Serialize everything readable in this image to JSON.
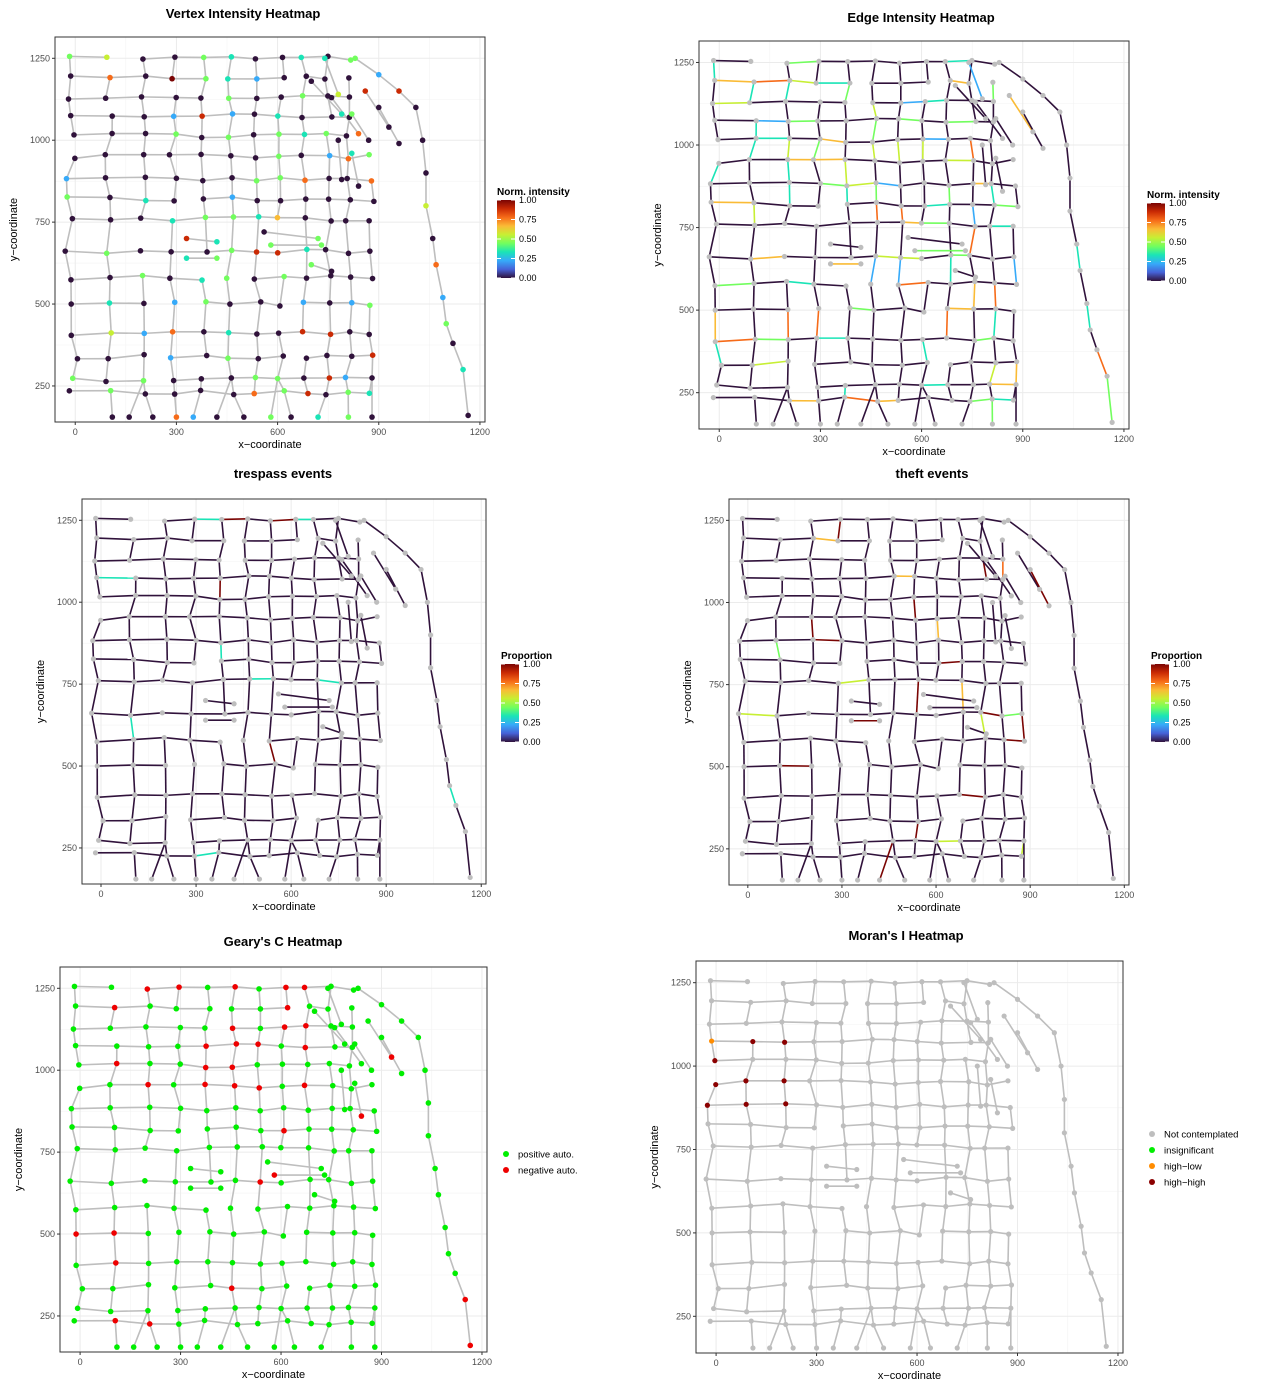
{
  "panels": [
    {
      "id": "p1",
      "title": "Vertex Intensity Heatmap",
      "xlabel": "x−coordinate",
      "ylabel": "y−coordinate",
      "x_ticks": [
        "0",
        "300",
        "600",
        "900",
        "1200"
      ],
      "y_ticks": [
        "250",
        "500",
        "750",
        "1000",
        "1250"
      ],
      "legend": {
        "title": "Norm. intensity",
        "type": "colorbar",
        "labels": [
          "1.00",
          "0.75",
          "0.50",
          "0.25",
          "0.00"
        ]
      }
    },
    {
      "id": "p2",
      "title": "Edge Intensity Heatmap",
      "xlabel": "x−coordinate",
      "ylabel": "y−coordinate",
      "x_ticks": [
        "0",
        "300",
        "600",
        "900",
        "1200"
      ],
      "y_ticks": [
        "250",
        "500",
        "750",
        "1000",
        "1250"
      ],
      "legend": {
        "title": "Norm. intensity",
        "type": "colorbar",
        "labels": [
          "1.00",
          "0.75",
          "0.50",
          "0.25",
          "0.00"
        ]
      }
    },
    {
      "id": "p3",
      "title": "trespass events",
      "xlabel": "x−coordinate",
      "ylabel": "y−coordinate",
      "x_ticks": [
        "0",
        "300",
        "600",
        "900",
        "1200"
      ],
      "y_ticks": [
        "250",
        "500",
        "750",
        "1000",
        "1250"
      ],
      "legend": {
        "title": "Proportion",
        "type": "colorbar",
        "labels": [
          "1.00",
          "0.75",
          "0.50",
          "0.25",
          "0.00"
        ]
      }
    },
    {
      "id": "p4",
      "title": "theft events",
      "xlabel": "x−coordinate",
      "ylabel": "y−coordinate",
      "x_ticks": [
        "0",
        "300",
        "600",
        "900",
        "1200"
      ],
      "y_ticks": [
        "250",
        "500",
        "750",
        "1000",
        "1250"
      ],
      "legend": {
        "title": "Proportion",
        "type": "colorbar",
        "labels": [
          "1.00",
          "0.75",
          "0.50",
          "0.25",
          "0.00"
        ]
      }
    },
    {
      "id": "p5",
      "title": "Geary's C Heatmap",
      "xlabel": "x−coordinate",
      "ylabel": "y−coordinate",
      "x_ticks": [
        "0",
        "300",
        "600",
        "900",
        "1200"
      ],
      "y_ticks": [
        "250",
        "500",
        "750",
        "1000",
        "1250"
      ],
      "legend": {
        "title": "",
        "type": "points",
        "items": [
          {
            "label": "positive auto.",
            "color": "#00ee00"
          },
          {
            "label": "negative auto.",
            "color": "#ee0000"
          }
        ]
      }
    },
    {
      "id": "p6",
      "title": "Moran's I Heatmap",
      "xlabel": "x−coordinate",
      "ylabel": "y−coordinate",
      "x_ticks": [
        "0",
        "300",
        "600",
        "900",
        "1200"
      ],
      "y_ticks": [
        "250",
        "500",
        "750",
        "1000",
        "1250"
      ],
      "legend": {
        "title": "",
        "type": "points",
        "items": [
          {
            "label": "Not contemplated",
            "color": "#bebebe"
          },
          {
            "label": "insignificant",
            "color": "#00ee00"
          },
          {
            "label": "high−low",
            "color": "#ff8c00"
          },
          {
            "label": "high−high",
            "color": "#8b0000"
          }
        ]
      }
    }
  ],
  "chart_data": [
    {
      "type": "scatter",
      "title": "Vertex Intensity Heatmap",
      "xlabel": "x−coordinate",
      "ylabel": "y−coordinate",
      "xlim": [
        0,
        1200
      ],
      "ylim": [
        150,
        1300
      ],
      "color_scale": "Norm. intensity",
      "color_range": [
        0,
        1
      ],
      "grid": true
    },
    {
      "type": "line",
      "title": "Edge Intensity Heatmap",
      "xlabel": "x−coordinate",
      "ylabel": "y−coordinate",
      "xlim": [
        0,
        1200
      ],
      "ylim": [
        150,
        1300
      ],
      "color_scale": "Norm. intensity",
      "color_range": [
        0,
        1
      ],
      "grid": true
    },
    {
      "type": "line",
      "title": "trespass events",
      "xlabel": "x−coordinate",
      "ylabel": "y−coordinate",
      "xlim": [
        0,
        1200
      ],
      "ylim": [
        150,
        1300
      ],
      "color_scale": "Proportion",
      "color_range": [
        0,
        1
      ],
      "grid": true
    },
    {
      "type": "line",
      "title": "theft events",
      "xlabel": "x−coordinate",
      "ylabel": "y−coordinate",
      "xlim": [
        0,
        1200
      ],
      "ylim": [
        150,
        1300
      ],
      "color_scale": "Proportion",
      "color_range": [
        0,
        1
      ],
      "grid": true
    },
    {
      "type": "scatter",
      "title": "Geary's C Heatmap",
      "xlabel": "x−coordinate",
      "ylabel": "y−coordinate",
      "xlim": [
        0,
        1200
      ],
      "ylim": [
        150,
        1300
      ],
      "categories": [
        "positive auto.",
        "negative auto."
      ],
      "grid": true
    },
    {
      "type": "scatter",
      "title": "Moran's I Heatmap",
      "xlabel": "x−coordinate",
      "ylabel": "y−coordinate",
      "xlim": [
        0,
        1200
      ],
      "ylim": [
        150,
        1300
      ],
      "categories": [
        "Not contemplated",
        "insignificant",
        "high−low",
        "high−high"
      ],
      "grid": true
    }
  ],
  "colors": {
    "edge_gray": "#bebebe",
    "edge_dark": "#30123b",
    "vertex_dark": "#30123b",
    "grid_gray": "#ebebeb",
    "turbo_scale": [
      "#30123b",
      "#4662d7",
      "#36aaf9",
      "#1ae4b6",
      "#72fe5e",
      "#c7ef34",
      "#fabb36",
      "#f66b19",
      "#ca2a04",
      "#7a0403"
    ]
  }
}
